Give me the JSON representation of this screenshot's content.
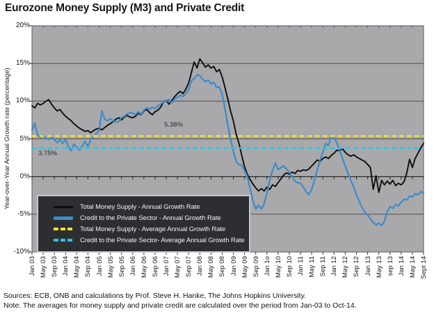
{
  "title": "Eurozone Money Supply (M3) and Private Credit",
  "y_axis_title": "Year-over-Year Annual Growth rate (percentage)",
  "annotations": {
    "money_supply_avg_label": "5.38%",
    "credit_avg_label": "3.75%"
  },
  "legend": {
    "items": [
      {
        "label": "Total Money Supply - Annual Growth Rate",
        "style": "solid",
        "color": "#0d0d0d",
        "thickness": 3
      },
      {
        "label": "Credit to the Private Sector - Annual Growth Rate",
        "style": "solid",
        "color": "#3f8cc9",
        "thickness": 5
      },
      {
        "label": "Total Money Supply - Average Annual Growth Rate",
        "style": "dashed",
        "color": "#f4e32a",
        "thickness": 4.5
      },
      {
        "label": "Credit to the Private Sector- Average Annual Growth Rate",
        "style": "dashed",
        "color": "#2ec4e6",
        "thickness": 4.5
      }
    ]
  },
  "footer": {
    "sources": "Sources: ECB, ONB and calculations by Prof. Steve H. Hanke, The Johns Hopkins University.",
    "note": "Note: The averages for money supply and private credit are calculated over the period from Jan-03 to Oct-14."
  },
  "chart_data": {
    "type": "line",
    "title": "Eurozone Money Supply (M3) and Private Credit",
    "xlabel": "",
    "ylabel": "Year-over-Year Annual Growth rate (percentage)",
    "ylim": [
      -10,
      20
    ],
    "grid": true,
    "legend_position": "bottom-left",
    "plot_bg_color": "#a9a9ab",
    "grid_color": "#4e4e51",
    "x_unit": "month",
    "x_start": "Jan 2003",
    "x_end": "Sept 2014",
    "x_ticks_every_n_months": 4,
    "x_tick_labels": [
      "Jan 03",
      "May 03",
      "Sep 03",
      "Jan 04",
      "May 04",
      "Sep 04",
      "Jan 05",
      "May 05",
      "Sep 05",
      "Jan 06",
      "May 06",
      "Sep 06",
      "Jan 07",
      "May 07",
      "Sep 07",
      "Jan 08",
      "May 08",
      "Sep 08",
      "Jan 09",
      "May 09",
      "Sep 09",
      "Jan 1o",
      "May 10",
      "Sep 10",
      "Jan 11",
      "May 11",
      "Sep 11",
      "Jan 12",
      "May 12",
      "Sep 12",
      "Jan 13",
      "May 13",
      "sep 13",
      "Jan 14",
      "May 14",
      "Sept 14"
    ],
    "y_ticks": [
      {
        "value": 20,
        "label": "20%"
      },
      {
        "value": 15,
        "label": "15%"
      },
      {
        "value": 10,
        "label": "10%"
      },
      {
        "value": 5,
        "label": "5%"
      },
      {
        "value": 0,
        "label": "0%"
      },
      {
        "value": -5,
        "label": "-5%"
      },
      {
        "value": -10,
        "label": "-10%"
      }
    ],
    "series": [
      {
        "name": "Total Money Supply - Annual Growth Rate",
        "color": "#0d0d0d",
        "width": 1.9,
        "values": [
          9.4,
          9.1,
          9.7,
          9.5,
          9.7,
          10.0,
          10.2,
          9.6,
          9.1,
          8.7,
          8.9,
          8.4,
          8.0,
          7.7,
          7.4,
          7.0,
          6.7,
          6.4,
          6.2,
          6.0,
          6.1,
          5.8,
          6.1,
          6.3,
          6.4,
          6.2,
          6.5,
          6.8,
          7.0,
          7.3,
          7.6,
          7.8,
          7.5,
          7.9,
          8.1,
          7.9,
          7.8,
          8.0,
          8.4,
          8.2,
          8.7,
          8.9,
          8.5,
          8.2,
          8.6,
          8.8,
          9.2,
          9.9,
          10.1,
          9.6,
          10.1,
          10.6,
          11.0,
          11.3,
          11.0,
          11.6,
          12.4,
          13.8,
          15.2,
          14.4,
          15.6,
          15.1,
          14.5,
          14.8,
          14.4,
          14.6,
          13.9,
          14.2,
          13.2,
          11.8,
          10.3,
          8.7,
          7.4,
          5.6,
          4.4,
          2.8,
          1.3,
          0.3,
          -0.4,
          -1.0,
          -1.5,
          -1.9,
          -1.6,
          -1.9,
          -1.4,
          -1.7,
          -1.1,
          -1.3,
          -0.8,
          -0.3,
          0.2,
          0.5,
          0.3,
          0.6,
          0.4,
          0.8,
          0.7,
          0.9,
          0.8,
          1.0,
          1.4,
          1.8,
          2.2,
          2.0,
          2.4,
          2.6,
          2.4,
          2.8,
          3.1,
          3.5,
          3.4,
          3.7,
          3.2,
          2.9,
          2.7,
          2.9,
          2.6,
          2.4,
          2.2,
          2.0,
          1.6,
          1.2,
          -1.7,
          0.1,
          -2.1,
          -0.5,
          -1.1,
          -0.6,
          -1.0,
          -0.5,
          -1.2,
          -0.9,
          -1.1,
          -0.7,
          0.5,
          2.3,
          1.2,
          2.4,
          3.1,
          3.8,
          4.4
        ]
      },
      {
        "name": "Credit to the Private Sector - Annual Growth Rate",
        "color": "#3f8cc9",
        "width": 2.3,
        "values": [
          6.1,
          7.1,
          5.5,
          5.2,
          5.5,
          5.1,
          4.9,
          5.2,
          4.9,
          4.5,
          4.9,
          4.4,
          4.9,
          4.0,
          3.4,
          4.3,
          3.9,
          3.5,
          4.1,
          4.7,
          4.0,
          4.9,
          5.3,
          5.7,
          6.1,
          8.7,
          7.6,
          7.4,
          7.7,
          7.4,
          7.2,
          7.3,
          7.8,
          8.0,
          8.3,
          8.5,
          8.4,
          8.2,
          8.6,
          8.3,
          8.8,
          9.1,
          8.9,
          9.2,
          9.0,
          9.4,
          9.6,
          9.9,
          10.0,
          10.2,
          9.8,
          10.3,
          10.5,
          10.8,
          10.6,
          11.0,
          11.5,
          12.7,
          13.0,
          13.5,
          13.4,
          12.9,
          12.6,
          12.8,
          12.3,
          12.5,
          11.8,
          11.9,
          10.9,
          9.0,
          6.8,
          5.0,
          3.3,
          2.0,
          1.6,
          1.5,
          0.8,
          0.0,
          -1.6,
          -3.2,
          -4.3,
          -3.8,
          -4.3,
          -3.6,
          -2.2,
          -0.5,
          0.8,
          1.8,
          0.9,
          1.2,
          1.4,
          1.0,
          0.6,
          0.0,
          -0.6,
          -0.8,
          -0.9,
          -1.4,
          -2.0,
          -2.4,
          -1.7,
          -0.5,
          0.9,
          2.1,
          3.3,
          4.4,
          4.1,
          5.4,
          5.2,
          4.5,
          3.5,
          2.4,
          1.4,
          0.4,
          -0.5,
          -1.4,
          -2.4,
          -3.3,
          -4.1,
          -4.7,
          -5.1,
          -5.6,
          -6.1,
          -6.4,
          -6.2,
          -6.5,
          -5.9,
          -4.7,
          -4.0,
          -4.2,
          -3.7,
          -3.9,
          -3.4,
          -3.0,
          -3.1,
          -2.6,
          -2.7,
          -2.3,
          -2.4,
          -2.0,
          -2.2
        ]
      }
    ],
    "average_lines": [
      {
        "name": "Total Money Supply - Average Annual Growth Rate",
        "value": 5.38,
        "label": "5.38%",
        "color": "#f4e32a"
      },
      {
        "name": "Credit to the Private Sector- Average Annual Growth Rate",
        "value": 3.75,
        "label": "3.75%",
        "color": "#2ec4e6"
      }
    ]
  }
}
